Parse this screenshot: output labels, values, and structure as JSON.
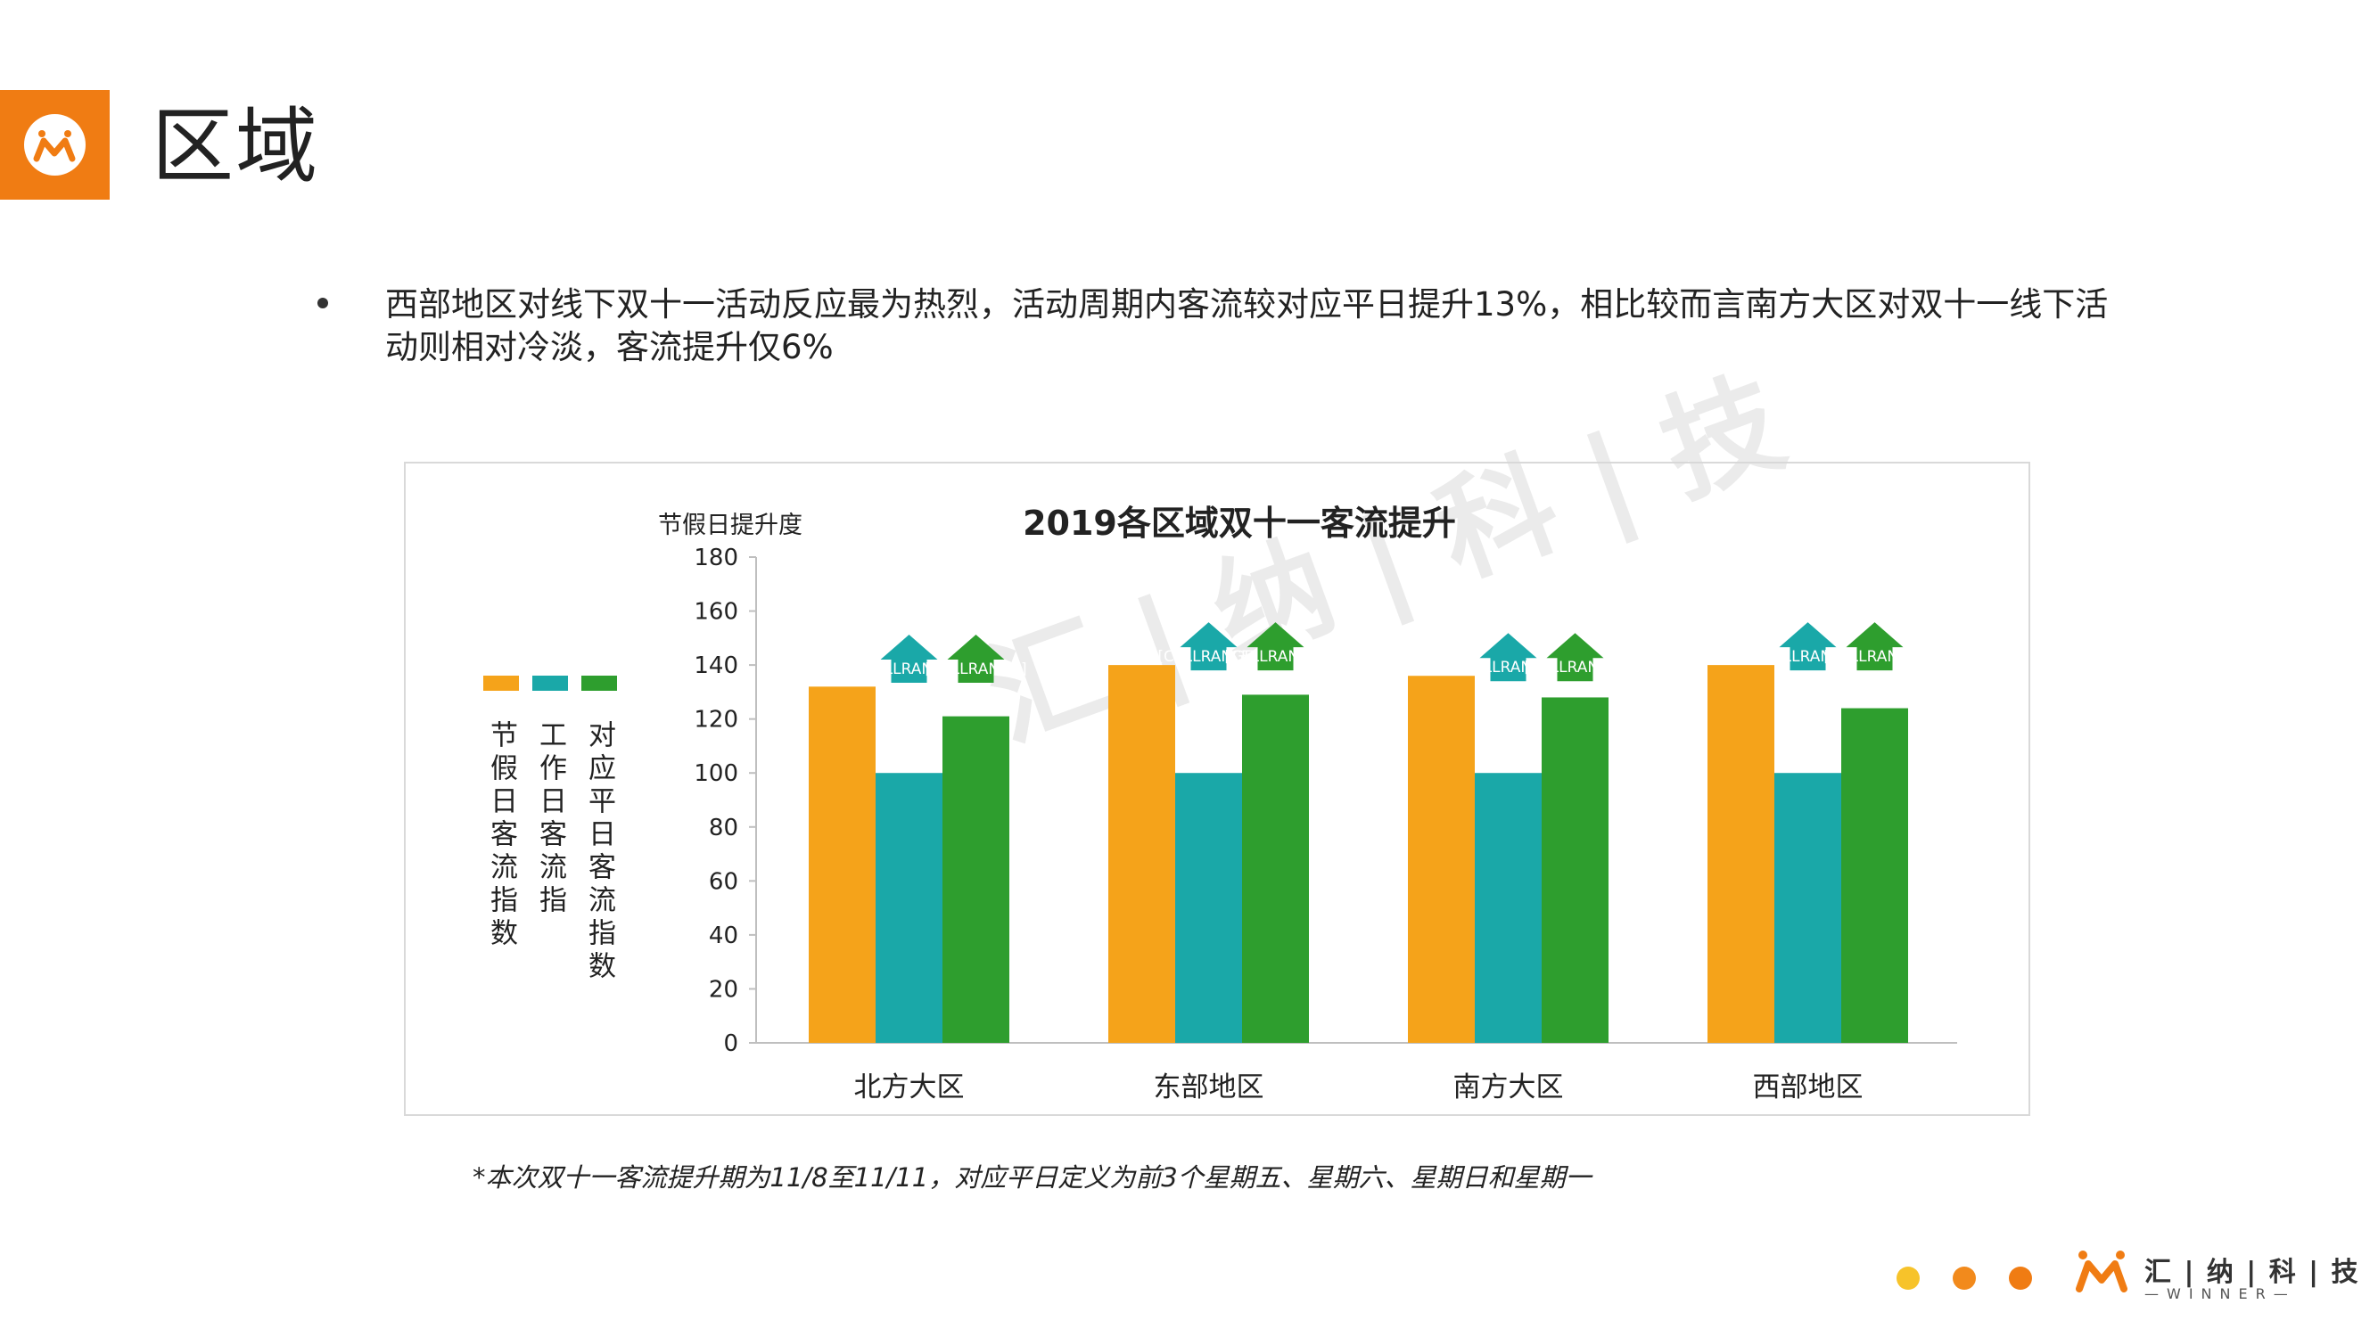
{
  "page": {
    "title": "区域",
    "bullet": "西部地区对线下双十一活动反应最为热烈，活动周期内客流较对应平日提升13%，相比较而言南方大区对双十一线下活动则相对冷淡，客流提升仅6%",
    "footnote": "*本次双十一客流提升期为11/8至11/11，对应平日定义为前3个星期五、星期六、星期日和星期一",
    "brand_name": "汇 | 纳 | 科 | 技",
    "brand_sub": "—WINNER—",
    "watermark": "汇 | 纳 | 科 | 技"
  },
  "colors": {
    "accent": "#f07c13",
    "holiday": "#f5a31a",
    "workday": "#1aa8a8",
    "weekday": "#2e9e2e",
    "dot1": "#f7c32a",
    "dot2": "#f28a1c",
    "dot3": "#f07c13"
  },
  "chart_data": {
    "type": "bar",
    "title": "2019各区域双十一客流提升",
    "ylabel": "节假日提升度",
    "ylim": [
      0,
      180
    ],
    "yticks": [
      0,
      20,
      40,
      60,
      80,
      100,
      120,
      140,
      160,
      180
    ],
    "categories": [
      "北方大区",
      "东部地区",
      "南方大区",
      "西部地区"
    ],
    "series": [
      {
        "name": "节假日客流指数",
        "values": [
          132,
          140,
          136,
          140
        ]
      },
      {
        "name": "工作日客流指",
        "values": [
          100,
          100,
          100,
          100
        ]
      },
      {
        "name": "对应平日客流指数",
        "values": [
          121,
          129,
          128,
          124
        ]
      }
    ],
    "arrow_label": "[CELLRANGE]",
    "legend_position": "left",
    "grid": false
  }
}
